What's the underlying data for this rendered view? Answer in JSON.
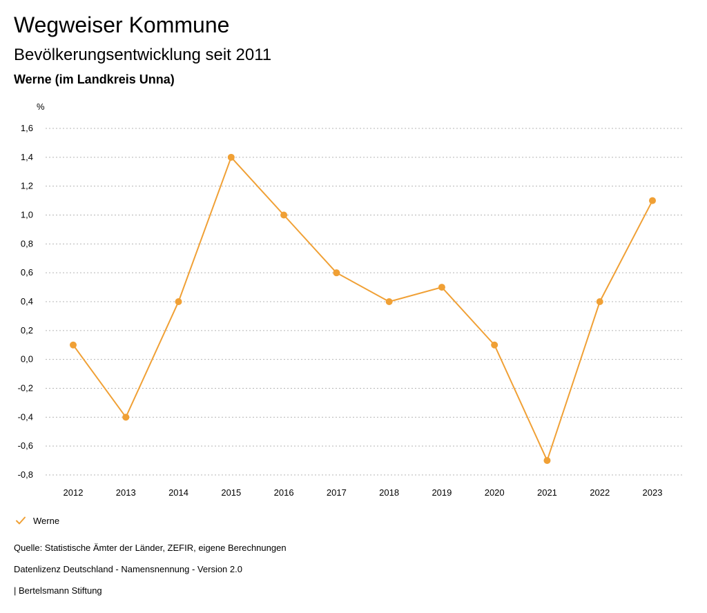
{
  "header": {
    "title": "Wegweiser Kommune",
    "subtitle": "Bevölkerungsentwicklung seit 2011",
    "region": "Werne (im Landkreis Unna)"
  },
  "footer": {
    "source": "Quelle: Statistische Ämter der Länder, ZEFIR, eigene Berechnungen",
    "license": "Datenlizenz Deutschland - Namensnennung - Version 2.0",
    "publisher": "| Bertelsmann Stiftung"
  },
  "colors": {
    "series": "#f0a035",
    "grid": "#b4b4b4",
    "text": "#000000"
  },
  "chart_data": {
    "type": "line",
    "title": "Bevölkerungsentwicklung seit 2011",
    "ylabel": "%",
    "xlabel": "",
    "ylim": [
      -0.8,
      1.6
    ],
    "yticks": [
      1.6,
      1.4,
      1.2,
      1.0,
      0.8,
      0.6,
      0.4,
      0.2,
      0.0,
      -0.2,
      -0.4,
      -0.6,
      -0.8
    ],
    "ytick_labels": [
      "1,6",
      "1,4",
      "1,2",
      "1,0",
      "0,8",
      "0,6",
      "0,4",
      "0,2",
      "0,0",
      "-0,2",
      "-0,4",
      "-0,6",
      "-0,8"
    ],
    "categories": [
      "2012",
      "2013",
      "2014",
      "2015",
      "2016",
      "2017",
      "2018",
      "2019",
      "2020",
      "2021",
      "2022",
      "2023"
    ],
    "grid": "horizontal-dotted",
    "legend": "bottom-left",
    "series": [
      {
        "name": "Werne",
        "values": [
          0.1,
          -0.4,
          0.4,
          1.4,
          1.0,
          0.6,
          0.4,
          0.5,
          0.1,
          -0.7,
          0.4,
          1.1
        ]
      }
    ]
  }
}
